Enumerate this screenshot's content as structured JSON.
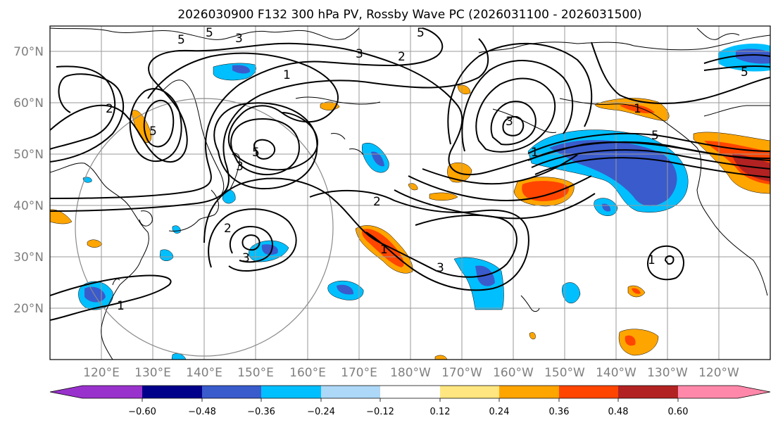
{
  "title": "2026030900 F132 300 hPa PV, Rossby Wave PC (2026031100 - 2026031500)",
  "lat_labels": [
    "70°N",
    "60°N",
    "50°N",
    "40°N",
    "30°N",
    "20°N"
  ],
  "lon_labels": [
    "120°E",
    "130°E",
    "140°E",
    "150°E",
    "160°E",
    "170°E",
    "180°W",
    "170°W",
    "160°W",
    "150°W",
    "140°W",
    "130°W",
    "120°W"
  ],
  "colorbar": {
    "ticks": [
      "−0.60",
      "−0.48",
      "−0.36",
      "−0.24",
      "−0.12",
      "0.12",
      "0.24",
      "0.36",
      "0.48",
      "0.60"
    ],
    "colors": [
      "#9932cc",
      "#00008b",
      "#3a5bcc",
      "#00bfff",
      "#add8f7",
      "#ffffff",
      "#ffe680",
      "#ffa500",
      "#ff4500",
      "#b22222",
      "#ff88aa"
    ]
  },
  "contour_labels": [
    "5",
    "5",
    "3",
    "5",
    "1",
    "3",
    "2",
    "5",
    "5",
    "3",
    "5",
    "2",
    "2",
    "1",
    "1",
    "3",
    "3",
    "2",
    "3",
    "1",
    "1",
    "5",
    "1"
  ],
  "map_data": {
    "extent_lon": [
      110,
      250
    ],
    "extent_lat": [
      10,
      75
    ],
    "field": "300 hPa PV",
    "overlay": "Rossby Wave PC"
  }
}
